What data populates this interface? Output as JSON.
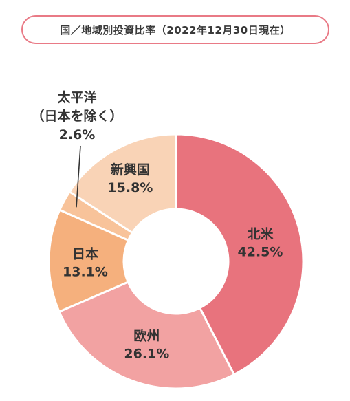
{
  "header": {
    "title": "国／地域別投資比率（2022年12月30日現在）"
  },
  "chart_data": {
    "type": "pie",
    "title": "国／地域別投資比率（2022年12月30日現在）",
    "categories": [
      "北米",
      "欧州",
      "日本",
      "太平洋（日本を除く）",
      "新興国"
    ],
    "values": [
      42.5,
      26.1,
      13.1,
      2.6,
      15.8
    ],
    "value_labels": [
      "42.5%",
      "26.1%",
      "13.1%",
      "2.6%",
      "15.8%"
    ],
    "colors": [
      "#e8737d",
      "#f2a2a2",
      "#f5b07d",
      "#f8c39a",
      "#f9d3b6"
    ],
    "donut": true,
    "legend": "none"
  }
}
